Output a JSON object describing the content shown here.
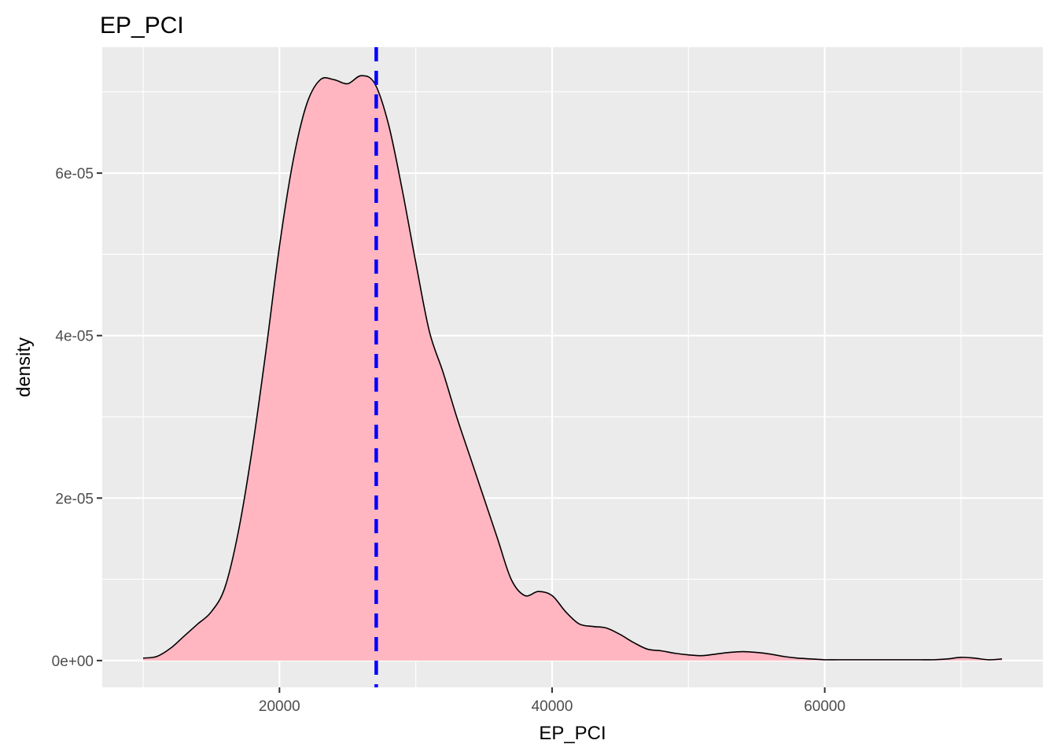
{
  "chart_data": {
    "type": "area",
    "title": "EP_PCI",
    "xlabel": "EP_PCI",
    "ylabel": "density",
    "xlim": [
      7000,
      76000
    ],
    "ylim": [
      -3.3e-06,
      7.55e-05
    ],
    "x_ticks": [
      20000,
      40000,
      60000
    ],
    "x_tick_labels": [
      "20000",
      "40000",
      "60000"
    ],
    "y_ticks": [
      0,
      2e-05,
      4e-05,
      6e-05
    ],
    "y_tick_labels": [
      "0e+00",
      "2e-05",
      "4e-05",
      "6e-05"
    ],
    "grid": true,
    "legend": "none",
    "colors": {
      "panel_background": "#ebebeb",
      "grid_line": "#ffffff",
      "area_fill": "#ffb6c1",
      "area_outline": "#000000",
      "reference_line": "#0000ff"
    },
    "series": [
      {
        "x": [
          10000,
          11000,
          12000,
          13000,
          14000,
          15000,
          16000,
          17000,
          18000,
          19000,
          20000,
          21000,
          22000,
          23000,
          24000,
          25000,
          26000,
          27000,
          28000,
          29000,
          30000,
          31000,
          32000,
          33000,
          34000,
          35000,
          36000,
          37000,
          38000,
          39000,
          40000,
          41000,
          42000,
          43000,
          44000,
          45000,
          46000,
          47000,
          48000,
          49000,
          50000,
          51000,
          52000,
          53000,
          54000,
          55000,
          56000,
          57000,
          58000,
          59000,
          60000,
          61000,
          62000,
          63000,
          64000,
          65000,
          66000,
          67000,
          68000,
          69000,
          70000,
          71000,
          72000,
          73000
        ],
        "y": [
          3e-07,
          5e-07,
          1.5e-06,
          3e-06,
          4.5e-06,
          6e-06,
          9e-06,
          1.6e-05,
          2.6e-05,
          3.8e-05,
          5.1e-05,
          6.15e-05,
          6.85e-05,
          7.15e-05,
          7.15e-05,
          7.1e-05,
          7.2e-05,
          7.1e-05,
          6.6e-05,
          5.8e-05,
          4.9e-05,
          4.05e-05,
          3.55e-05,
          3e-05,
          2.5e-05,
          2e-05,
          1.5e-05,
          1e-05,
          8e-06,
          8.5e-06,
          8e-06,
          6e-06,
          4.5e-06,
          4.2e-06,
          4e-06,
          3.2e-06,
          2.2e-06,
          1.4e-06,
          1.2e-06,
          9e-07,
          7e-07,
          6e-07,
          8e-07,
          1e-06,
          1.1e-06,
          1e-06,
          8e-07,
          5e-07,
          3e-07,
          2e-07,
          1e-07,
          1e-07,
          1e-07,
          1e-07,
          1e-07,
          1e-07,
          1e-07,
          1e-07,
          1e-07,
          2e-07,
          4e-07,
          3e-07,
          1e-07,
          2e-07
        ]
      }
    ],
    "reference_line": {
      "orientation": "vertical",
      "style": "dashed",
      "x": 27100
    }
  }
}
